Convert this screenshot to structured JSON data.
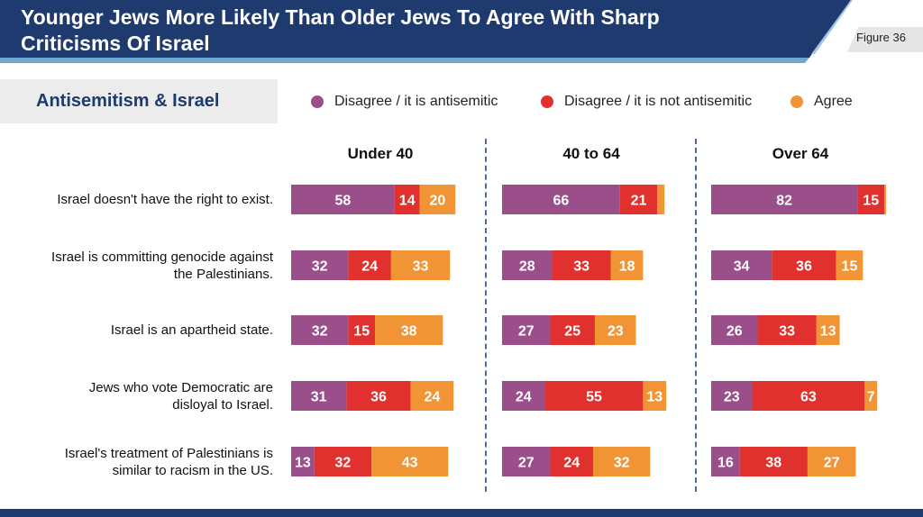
{
  "header": {
    "title_line1": "Younger Jews More Likely Than Older Jews To Agree With Sharp",
    "title_line2": "Criticisms Of Israel",
    "figure_label": "Figure 36"
  },
  "section_title": "Antisemitism & Israel",
  "colors": {
    "header_blue": "#1f3a6e",
    "disagree_antisemitic": "#9b4f8a",
    "disagree_not_antisemitic": "#e0312e",
    "agree": "#f09436"
  },
  "chart_data": {
    "type": "bar",
    "orientation": "horizontal-stacked-100",
    "legend": [
      {
        "label": "Disagree / it is antisemitic",
        "color": "#9b4f8a"
      },
      {
        "label": "Disagree / it is not antisemitic",
        "color": "#e0312e"
      },
      {
        "label": "Agree",
        "color": "#f09436"
      }
    ],
    "categories": [
      "Israel doesn't have the right to exist.",
      "Israel is committing genocide against the Palestinians.",
      "Israel is an apartheid state.",
      "Jews who vote Democratic are disloyal to Israel.",
      "Israel's treatment of Palestinians is similar to racism in the US."
    ],
    "category_lines": [
      [
        "Israel doesn't have the right to exist."
      ],
      [
        "Israel is committing genocide against",
        "the Palestinians."
      ],
      [
        "Israel is an apartheid state."
      ],
      [
        "Jews who vote Democratic are",
        "disloyal to Israel."
      ],
      [
        "Israel's treatment of Palestinians is",
        "similar to racism in the US."
      ]
    ],
    "groups": [
      {
        "name": "Under 40",
        "values": [
          [
            58,
            14,
            20
          ],
          [
            32,
            24,
            33
          ],
          [
            32,
            15,
            38
          ],
          [
            31,
            36,
            24
          ],
          [
            13,
            32,
            43
          ]
        ],
        "labels": [
          [
            "58",
            "14",
            "20"
          ],
          [
            "32",
            "24",
            "33"
          ],
          [
            "32",
            "15",
            "38"
          ],
          [
            "31",
            "36",
            "24"
          ],
          [
            "13",
            "32",
            "43"
          ]
        ]
      },
      {
        "name": "40 to 64",
        "values": [
          [
            66,
            21,
            4
          ],
          [
            28,
            33,
            18
          ],
          [
            27,
            25,
            23
          ],
          [
            24,
            55,
            13
          ],
          [
            27,
            24,
            32
          ]
        ],
        "labels": [
          [
            "66",
            "21",
            ""
          ],
          [
            "28",
            "33",
            "18"
          ],
          [
            "27",
            "25",
            "23"
          ],
          [
            "24",
            "55",
            "13"
          ],
          [
            "27",
            "24",
            "32"
          ]
        ]
      },
      {
        "name": "Over 64",
        "values": [
          [
            82,
            15,
            1
          ],
          [
            34,
            36,
            15
          ],
          [
            26,
            33,
            13
          ],
          [
            23,
            63,
            7
          ],
          [
            16,
            38,
            27
          ]
        ],
        "labels": [
          [
            "82",
            "15",
            ""
          ],
          [
            "34",
            "36",
            "15"
          ],
          [
            "26",
            "33",
            "13"
          ],
          [
            "23",
            "63",
            "7"
          ],
          [
            "16",
            "38",
            "27"
          ]
        ]
      }
    ]
  }
}
